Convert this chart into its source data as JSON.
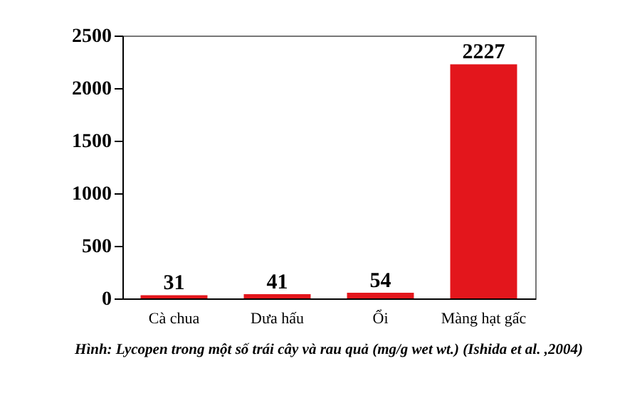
{
  "chart_data": {
    "type": "bar",
    "categories": [
      "Cà chua",
      "Dưa hấu",
      "Ổi",
      "Màng hạt gấc"
    ],
    "values": [
      31,
      41,
      54,
      2227
    ],
    "color": "#e3161c",
    "ylim": [
      0,
      2500
    ],
    "yticks": [
      0,
      500,
      1000,
      1500,
      2000,
      2500
    ],
    "grid": false,
    "data_labels": true,
    "annotations": [
      "Hình: Lycopen trong một số trái cây và rau quả (mg/g wet wt.) (Ishida  et al. ,2004)"
    ]
  }
}
